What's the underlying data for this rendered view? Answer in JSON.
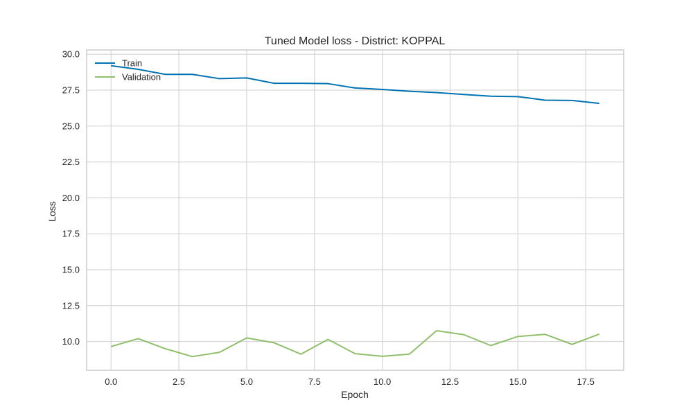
{
  "chart_data": {
    "type": "line",
    "title": "Tuned Model loss - District: KOPPAL",
    "xlabel": "Epoch",
    "ylabel": "Loss",
    "xlim": [
      -0.9,
      18.9
    ],
    "ylim": [
      8.0,
      30.3
    ],
    "xticks": [
      0.0,
      2.5,
      5.0,
      7.5,
      10.0,
      12.5,
      15.0,
      17.5
    ],
    "xtick_labels": [
      "0.0",
      "2.5",
      "5.0",
      "7.5",
      "10.0",
      "12.5",
      "15.0",
      "17.5"
    ],
    "yticks": [
      10.0,
      12.5,
      15.0,
      17.5,
      20.0,
      22.5,
      25.0,
      27.5,
      30.0
    ],
    "ytick_labels": [
      "10.0",
      "12.5",
      "15.0",
      "17.5",
      "20.0",
      "22.5",
      "25.0",
      "27.5",
      "30.0"
    ],
    "grid": true,
    "legend_position": "top-left",
    "x": [
      0,
      1,
      2,
      3,
      4,
      5,
      6,
      7,
      8,
      9,
      10,
      11,
      12,
      13,
      14,
      15,
      16,
      17,
      18
    ],
    "series": [
      {
        "name": "Train",
        "color": "#0072B2",
        "values": [
          29.2,
          28.95,
          28.6,
          28.6,
          28.3,
          28.35,
          27.98,
          27.98,
          27.95,
          27.65,
          27.55,
          27.42,
          27.33,
          27.2,
          27.08,
          27.05,
          26.8,
          26.78,
          26.58
        ]
      },
      {
        "name": "Validation",
        "color": "#8FBF6A",
        "values": [
          9.65,
          10.2,
          9.5,
          8.95,
          9.25,
          10.25,
          9.92,
          9.12,
          10.15,
          9.15,
          8.97,
          9.12,
          10.75,
          10.48,
          9.72,
          10.35,
          10.5,
          9.8,
          10.52
        ]
      }
    ]
  }
}
